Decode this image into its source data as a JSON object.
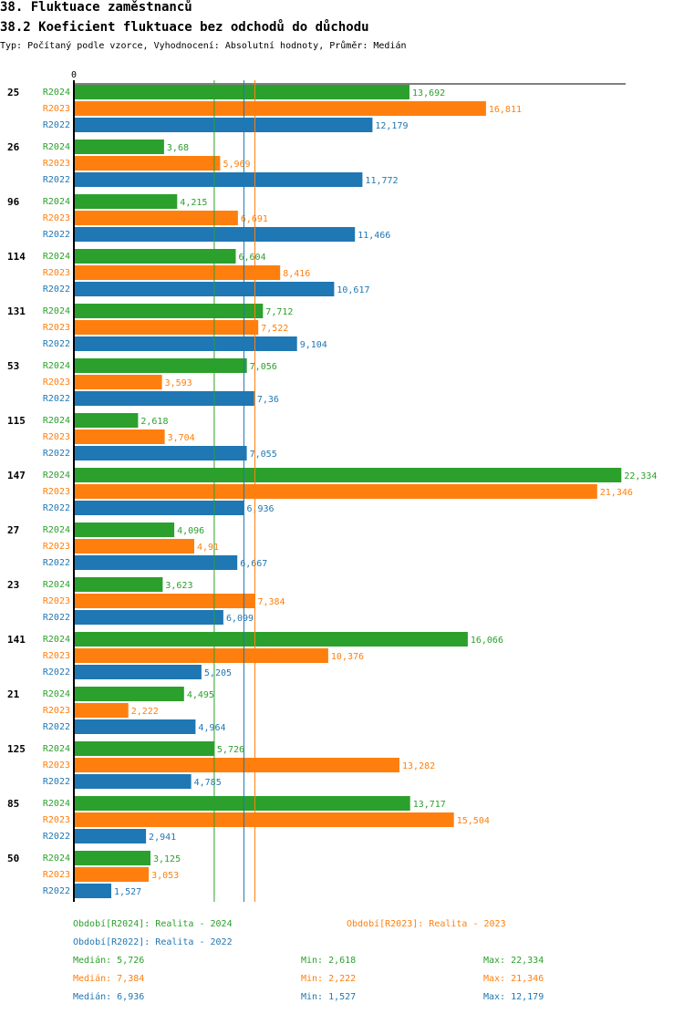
{
  "header": {
    "title": "38. Fluktuace zaměstnanců",
    "subtitle": "38.2 Koeficient fluktuace bez odchodů do důchodu",
    "info": "Typ: Počítaný podle vzorce, Vyhodnocení: Absolutní hodnoty, Průměr: Medián"
  },
  "colors": {
    "R2024": "#2ca02c",
    "R2023": "#ff7f0e",
    "R2022": "#1f77b4"
  },
  "chart_data": {
    "type": "bar",
    "orientation": "horizontal",
    "axis_zero_label": "0",
    "xlim": [
      0,
      22.334
    ],
    "categories": [
      "25",
      "26",
      "96",
      "114",
      "131",
      "53",
      "115",
      "147",
      "27",
      "23",
      "141",
      "21",
      "125",
      "85",
      "50"
    ],
    "series": [
      {
        "name": "R2024",
        "values": [
          13.692,
          3.68,
          4.215,
          6.604,
          7.712,
          7.056,
          2.618,
          22.334,
          4.096,
          3.623,
          16.066,
          4.495,
          5.726,
          13.717,
          3.125
        ],
        "labels": [
          "13,692",
          "3,68",
          "4,215",
          "6,604",
          "7,712",
          "7,056",
          "2,618",
          "22,334",
          "4,096",
          "3,623",
          "16,066",
          "4,495",
          "5,726",
          "13,717",
          "3,125"
        ]
      },
      {
        "name": "R2023",
        "values": [
          16.811,
          5.969,
          6.691,
          8.416,
          7.522,
          3.593,
          3.704,
          21.346,
          4.91,
          7.384,
          10.376,
          2.222,
          13.282,
          15.504,
          3.053
        ],
        "labels": [
          "16,811",
          "5,969",
          "6,691",
          "8,416",
          "7,522",
          "3,593",
          "3,704",
          "21,346",
          "4,91",
          "7,384",
          "10,376",
          "2,222",
          "13,282",
          "15,504",
          "3,053"
        ]
      },
      {
        "name": "R2022",
        "values": [
          12.179,
          11.772,
          11.466,
          10.617,
          9.104,
          7.36,
          7.055,
          6.936,
          6.667,
          6.099,
          5.205,
          4.964,
          4.785,
          2.941,
          1.527
        ],
        "labels": [
          "12,179",
          "11,772",
          "11,466",
          "10,617",
          "9,104",
          "7,36",
          "7,055",
          "6,936",
          "6,667",
          "6,099",
          "5,205",
          "4,964",
          "4,785",
          "2,941",
          "1,527"
        ]
      }
    ],
    "median_lines": [
      {
        "series": "R2024",
        "value": 5.726
      },
      {
        "series": "R2023",
        "value": 7.384
      },
      {
        "series": "R2022",
        "value": 6.936
      }
    ]
  },
  "legend": {
    "period_r2024": "Období[R2024]: Realita - 2024",
    "period_r2023": "Období[R2023]: Realita - 2023",
    "period_r2022": "Období[R2022]: Realita - 2022",
    "stats": [
      {
        "median": "Medián: 5,726",
        "min": "Min: 2,618",
        "max": "Max: 22,334"
      },
      {
        "median": "Medián: 7,384",
        "min": "Min: 2,222",
        "max": "Max: 21,346"
      },
      {
        "median": "Medián: 6,936",
        "min": "Min: 1,527",
        "max": "Max: 12,179"
      }
    ]
  }
}
